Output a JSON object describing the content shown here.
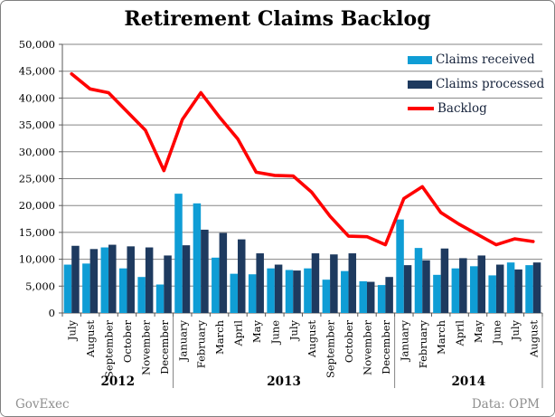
{
  "title": "Retirement Claims Backlog",
  "footer": {
    "left": "GovExec",
    "right": "Data: OPM"
  },
  "legend": [
    {
      "label": "Claims received",
      "color": "#0F9DD5",
      "type": "bar"
    },
    {
      "label": "Claims processed",
      "color": "#1E3A5F",
      "type": "bar"
    },
    {
      "label": "Backlog",
      "color": "#FF0000",
      "type": "line"
    }
  ],
  "colors": {
    "received": "#0F9DD5",
    "processed": "#1E3A5F",
    "backlog": "#FF0000",
    "grid": "#858585",
    "axis": "#595959",
    "text": "#000000",
    "footer_text": "#8F8F8F",
    "frame_border": "#808080",
    "background": "#FFFFFF"
  },
  "chart_data": {
    "type": "bar+line",
    "title": "Retirement Claims Backlog",
    "xlabel": "",
    "ylabel": "",
    "ylim": [
      0,
      50000
    ],
    "ytick": 5000,
    "ytick_labels": [
      "0",
      "5,000",
      "10,000",
      "15,000",
      "20,000",
      "25,000",
      "30,000",
      "35,000",
      "40,000",
      "45,000",
      "50,000"
    ],
    "grid": true,
    "legend_position": "top-right-inside",
    "categories": [
      "July",
      "August",
      "September",
      "October",
      "November",
      "December",
      "January",
      "February",
      "March",
      "April",
      "May",
      "June",
      "July",
      "August",
      "September",
      "October",
      "November",
      "December",
      "January",
      "February",
      "March",
      "April",
      "May",
      "June",
      "July",
      "August"
    ],
    "year_groups": [
      {
        "label": "2012",
        "count": 6
      },
      {
        "label": "2013",
        "count": 12
      },
      {
        "label": "2014",
        "count": 8
      }
    ],
    "series": [
      {
        "name": "Claims received",
        "type": "bar",
        "color": "#0F9DD5",
        "values": [
          9000,
          9200,
          12200,
          8300,
          6700,
          5300,
          22200,
          20400,
          10300,
          7300,
          7200,
          8300,
          8000,
          8300,
          6200,
          7800,
          5900,
          5200,
          17400,
          12100,
          7100,
          8300,
          8700,
          7000,
          9400,
          8900
        ]
      },
      {
        "name": "Claims processed",
        "type": "bar",
        "color": "#1E3A5F",
        "values": [
          12500,
          11900,
          12700,
          12400,
          12200,
          10700,
          12600,
          15500,
          14900,
          13700,
          11100,
          9000,
          7900,
          11100,
          10900,
          11100,
          5800,
          6700,
          8900,
          9800,
          12000,
          10200,
          10700,
          9000,
          8100,
          9400
        ]
      },
      {
        "name": "Backlog",
        "type": "line",
        "color": "#FF0000",
        "values": [
          44500,
          41700,
          41000,
          37500,
          34000,
          26500,
          36000,
          41000,
          36500,
          32400,
          26200,
          25600,
          25500,
          22500,
          18000,
          14300,
          14200,
          12700,
          21300,
          23500,
          18700,
          16500,
          14600,
          12700,
          13800,
          13300
        ]
      }
    ]
  }
}
